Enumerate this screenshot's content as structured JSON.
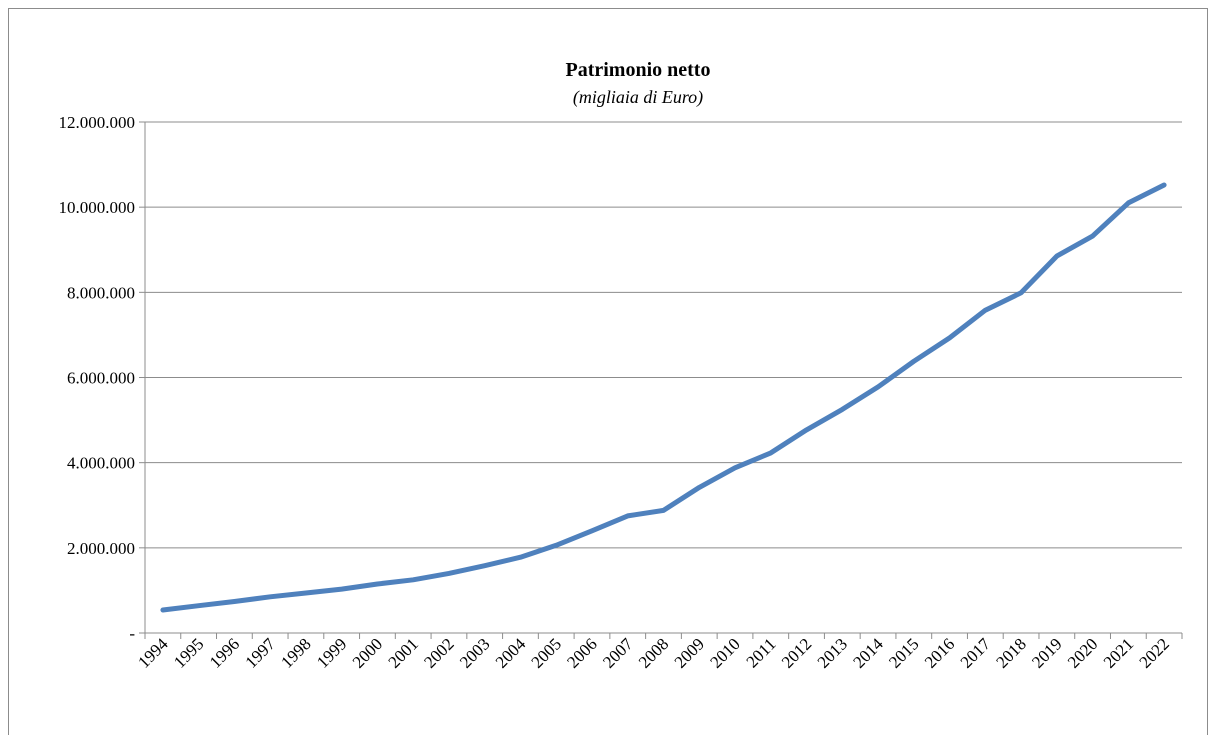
{
  "chart_data": {
    "type": "line",
    "title": "Patrimonio netto",
    "subtitle": "(migliaia di Euro)",
    "xlabel": "",
    "ylabel": "",
    "categories": [
      "1994",
      "1995",
      "1996",
      "1997",
      "1998",
      "1999",
      "2000",
      "2001",
      "2002",
      "2003",
      "2004",
      "2005",
      "2006",
      "2007",
      "2008",
      "2009",
      "2010",
      "2011",
      "2012",
      "2013",
      "2014",
      "2015",
      "2016",
      "2017",
      "2018",
      "2019",
      "2020",
      "2021",
      "2022"
    ],
    "series": [
      {
        "values": [
          540000,
          640000,
          740000,
          850000,
          940000,
          1030000,
          1150000,
          1250000,
          1400000,
          1580000,
          1780000,
          2060000,
          2400000,
          2750000,
          2880000,
          3420000,
          3880000,
          4230000,
          4770000,
          5250000,
          5780000,
          6380000,
          6930000,
          7580000,
          7990000,
          8850000,
          9320000,
          10100000,
          10520000
        ],
        "color": "#4f81bd"
      }
    ],
    "ylim": [
      0,
      12000000
    ],
    "yticks": [
      0,
      2000000,
      4000000,
      6000000,
      8000000,
      10000000,
      12000000
    ],
    "ytick_labels": [
      "-",
      "2.000.000",
      "4.000.000",
      "6.000.000",
      "8.000.000",
      "10.000.000",
      "12.000.000"
    ],
    "grid": true,
    "legend": "none"
  }
}
